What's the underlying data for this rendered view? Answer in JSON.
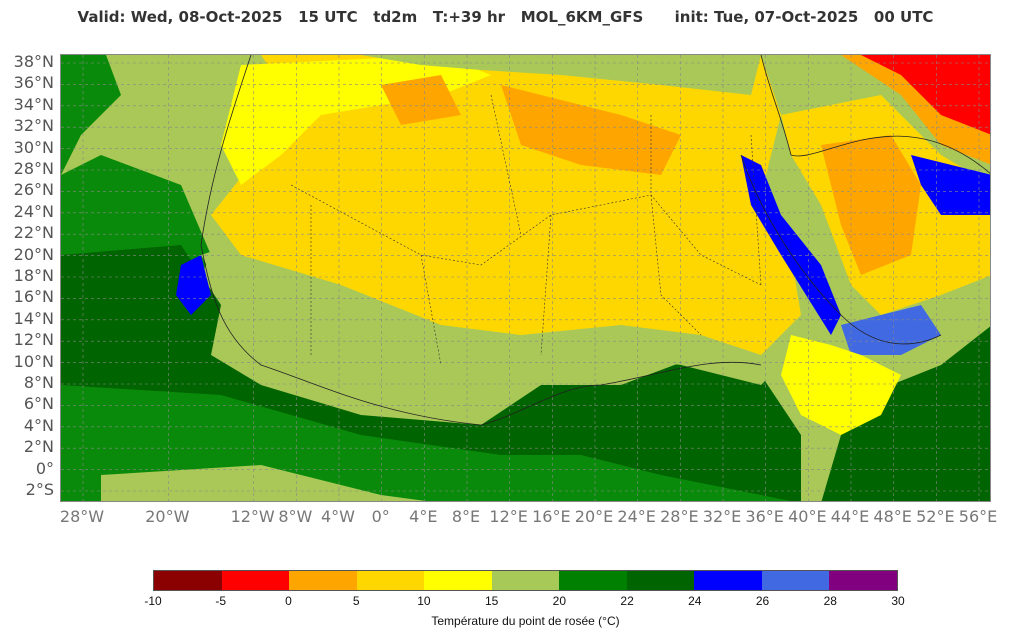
{
  "header": {
    "title": "Valid: Wed, 08-Oct-2025   15 UTC   td2m   T:+39 hr   MOL_6KM_GFS      init: Tue, 07-Oct-2025   00 UTC"
  },
  "map": {
    "variable": "td2m",
    "lat_labels": [
      "38°N",
      "36°N",
      "34°N",
      "32°N",
      "30°N",
      "28°N",
      "26°N",
      "24°N",
      "22°N",
      "20°N",
      "18°N",
      "16°N",
      "14°N",
      "12°N",
      "10°N",
      "8°N",
      "6°N",
      "4°N",
      "2°N",
      "0°",
      "2°S"
    ],
    "lon_labels": [
      "28°W",
      "20°W",
      "12°W",
      "8°W",
      "4°W",
      "0°",
      "4°E",
      "8°E",
      "12°E",
      "16°E",
      "20°E",
      "24°E",
      "28°E",
      "32°E",
      "36°E",
      "40°E",
      "44°E",
      "48°E",
      "52°E",
      "56°E"
    ],
    "colors": {
      "very_dry": "#8b0000",
      "dry": "#ff0000",
      "orange": "#ffa500",
      "gold": "#ffd700",
      "yellow": "#ffff00",
      "light_green": "#a7c957",
      "green": "#0a8a0a",
      "dark_green": "#006400",
      "blue": "#0000ff",
      "royal_blue": "#4169e1",
      "purple": "#800080",
      "ocean": "#b5cf5b"
    }
  },
  "colorbar": {
    "label": "Température du point de rosée (°C)",
    "ticks": [
      "-10",
      "-5",
      "0",
      "5",
      "10",
      "15",
      "20",
      "22",
      "24",
      "26",
      "28",
      "30"
    ],
    "colors": [
      "#8b0000",
      "#ff0000",
      "#ffa500",
      "#ffd700",
      "#ffff00",
      "#a7c957",
      "#008000",
      "#006400",
      "#0000ff",
      "#4169e1",
      "#800080"
    ]
  }
}
